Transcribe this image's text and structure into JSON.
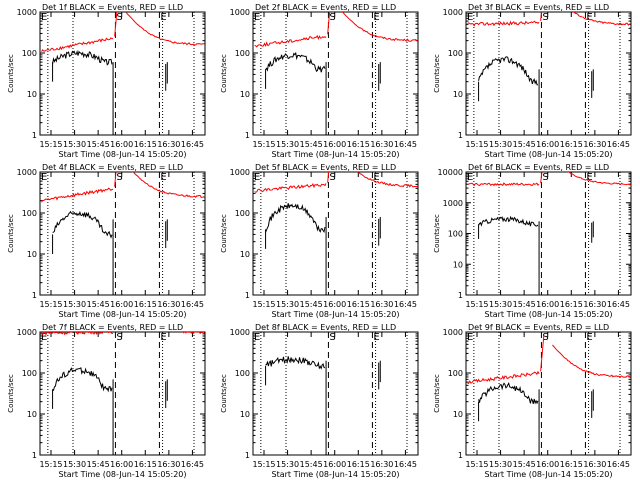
{
  "figure": {
    "xlabel_prefix": "Start Time",
    "start_time": "(08-Jun-14 15:05:20)",
    "ylabel": "Counts/sec",
    "x_tick_labels": [
      "15:15",
      "15:30",
      "15:45",
      "16:00",
      "16:15",
      "16:30",
      "16:45"
    ],
    "y_tick_labels": [
      "1",
      "10",
      "100",
      "1000"
    ],
    "event_markers": [
      "S",
      "E"
    ],
    "colors": {
      "events": "#000000",
      "lld": "#ff0000",
      "axes": "#000000"
    }
  },
  "chart_data": [
    {
      "type": "line",
      "title": "Det 1f BLACK = Events, RED = LLD",
      "ylim": [
        1,
        1000
      ],
      "yscale": "log",
      "series": [
        {
          "name": "Events",
          "level": [
            60,
            100,
            60
          ]
        },
        {
          "name": "LLD",
          "level": [
            110,
            230,
            160
          ]
        }
      ]
    },
    {
      "type": "line",
      "title": "Det 2f BLACK = Events, RED = LLD",
      "ylim": [
        1,
        1000
      ],
      "yscale": "log",
      "series": [
        {
          "name": "Events",
          "level": [
            40,
            90,
            60
          ]
        },
        {
          "name": "LLD",
          "level": [
            150,
            260,
            200
          ]
        }
      ]
    },
    {
      "type": "line",
      "title": "Det 3f BLACK = Events, RED = LLD",
      "ylim": [
        1,
        1000
      ],
      "yscale": "log",
      "series": [
        {
          "name": "Events",
          "level": [
            20,
            70,
            40
          ]
        },
        {
          "name": "LLD",
          "level": [
            500,
            550,
            500
          ]
        }
      ]
    },
    {
      "type": "line",
      "title": "Det 4f BLACK = Events, RED = LLD",
      "ylim": [
        1,
        1000
      ],
      "yscale": "log",
      "series": [
        {
          "name": "Events",
          "level": [
            30,
            100,
            70
          ]
        },
        {
          "name": "LLD",
          "level": [
            200,
            400,
            250
          ]
        }
      ]
    },
    {
      "type": "line",
      "title": "Det 5f BLACK = Events, RED = LLD",
      "ylim": [
        1,
        1000
      ],
      "yscale": "log",
      "series": [
        {
          "name": "Events",
          "level": [
            40,
            150,
            80
          ]
        },
        {
          "name": "LLD",
          "level": [
            350,
            500,
            450
          ]
        }
      ]
    },
    {
      "type": "line",
      "title": "Det 6f BLACK = Events, RED = LLD",
      "ylim": [
        1,
        10000
      ],
      "yscale": "log",
      "series": [
        {
          "name": "Events",
          "level": [
            200,
            300,
            250
          ]
        },
        {
          "name": "LLD",
          "level": [
            4000,
            4000,
            4000
          ]
        }
      ]
    },
    {
      "type": "line",
      "title": "Det 7f BLACK = Events, RED = LLD",
      "ylim": [
        1,
        1000
      ],
      "yscale": "log",
      "series": [
        {
          "name": "Events",
          "level": [
            40,
            120,
            70
          ]
        },
        {
          "name": "LLD",
          "level": [
            950,
            1000,
            950
          ]
        }
      ]
    },
    {
      "type": "line",
      "title": "Det 8f BLACK = Events, RED = LLD",
      "ylim": [
        1,
        1000
      ],
      "yscale": "log",
      "series": [
        {
          "name": "Events",
          "level": [
            150,
            220,
            200
          ]
        }
      ]
    },
    {
      "type": "line",
      "title": "Det 9f BLACK = Events, RED = LLD",
      "ylim": [
        1,
        1000
      ],
      "yscale": "log",
      "series": [
        {
          "name": "Events",
          "level": [
            20,
            50,
            40
          ]
        },
        {
          "name": "LLD",
          "level": [
            60,
            100,
            80
          ]
        }
      ]
    }
  ]
}
